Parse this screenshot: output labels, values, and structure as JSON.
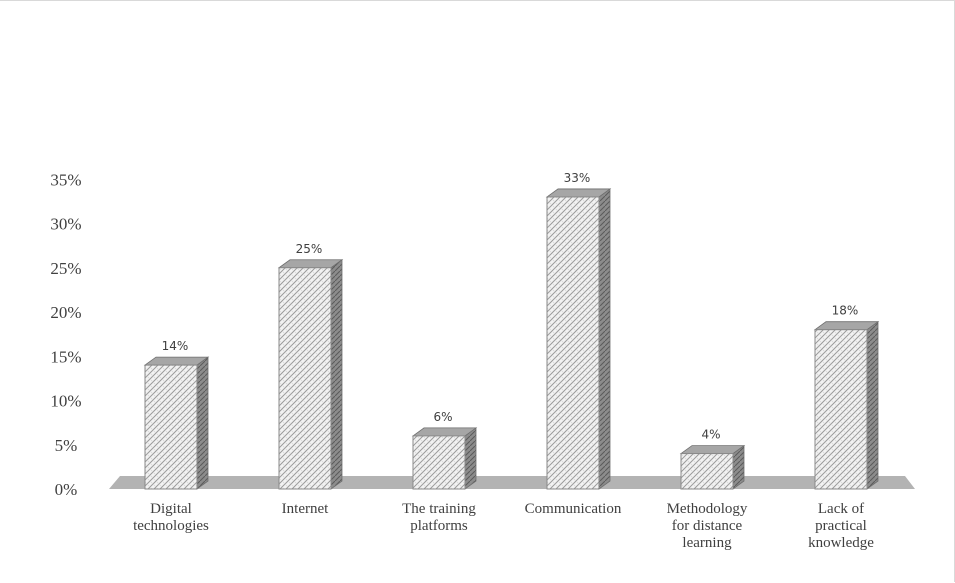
{
  "chart_data": {
    "type": "bar",
    "categories": [
      [
        "Digital",
        "technologies"
      ],
      [
        "Internet"
      ],
      [
        "The training",
        "platforms"
      ],
      [
        "Communication"
      ],
      [
        "Methodology",
        "for distance",
        "learning"
      ],
      [
        "Lack of",
        "practical",
        "knowledge"
      ]
    ],
    "values": [
      14,
      25,
      6,
      33,
      4,
      18
    ],
    "data_labels": [
      "14%",
      "25%",
      "6%",
      "33%",
      "4%",
      "18%"
    ],
    "y_ticks": [
      "0%",
      "5%",
      "10%",
      "15%",
      "20%",
      "25%",
      "30%",
      "35%"
    ],
    "ylim": [
      0,
      35
    ],
    "grid": false,
    "legend": "none",
    "three_d": true,
    "colors": {
      "bar_face": "#f2f2f2",
      "bar_hatch": "#9a9a9a",
      "bar_side": "#8c8c8c",
      "bar_top": "#a6a6a6",
      "floor": "#b3b3b3",
      "text": "#404040"
    }
  }
}
